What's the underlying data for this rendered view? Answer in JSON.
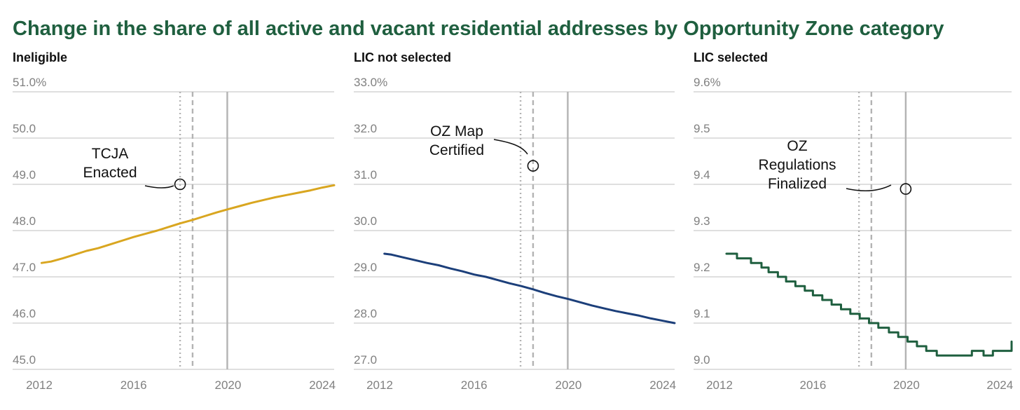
{
  "title": "Change in the share of all active and vacant residential addresses by Opportunity Zone category",
  "colors": {
    "title": "#1f5f3f",
    "grid": "#cccccc",
    "tick_text": "#808080",
    "event_line": "#b3b3b3",
    "ineligible": "#d9a620",
    "lic_not_selected": "#1c3f7a",
    "lic_selected": "#1f5f3f"
  },
  "events": [
    {
      "name": "TCJA Enacted",
      "x": 2017.97,
      "style": "dotted"
    },
    {
      "name": "OZ Map Certified",
      "x": 2018.5,
      "style": "dashed"
    },
    {
      "name": "OZ Regulations Finalized",
      "x": 2019.97,
      "style": "solid"
    }
  ],
  "chart_data": [
    {
      "type": "line",
      "title": "Ineligible",
      "xlim": [
        2012,
        2024.5
      ],
      "ylim": [
        45.0,
        51.0
      ],
      "x_ticks": [
        2012,
        2016,
        2020,
        2024
      ],
      "y_ticks": [
        45.0,
        46.0,
        47.0,
        48.0,
        49.0,
        50.0,
        51.0
      ],
      "x_tick_labels": [
        "2012",
        "2016",
        "2020",
        "2024"
      ],
      "y_tick_labels": [
        "45.0",
        "46.0",
        "47.0",
        "48.0",
        "49.0",
        "50.0",
        "51.0%"
      ],
      "series": [
        {
          "color": "#d9a620",
          "x": [
            2012.1,
            2012.5,
            2013.0,
            2013.5,
            2014.0,
            2014.5,
            2015.0,
            2015.5,
            2016.0,
            2016.5,
            2017.0,
            2017.5,
            2018.0,
            2018.5,
            2019.0,
            2019.5,
            2020.0,
            2020.5,
            2021.0,
            2021.5,
            2022.0,
            2022.5,
            2023.0,
            2023.5,
            2024.0,
            2024.5
          ],
          "y": [
            47.3,
            47.33,
            47.4,
            47.48,
            47.56,
            47.62,
            47.7,
            47.78,
            47.86,
            47.93,
            48.0,
            48.08,
            48.16,
            48.23,
            48.31,
            48.39,
            48.46,
            48.53,
            48.6,
            48.66,
            48.72,
            48.77,
            48.82,
            48.87,
            48.93,
            48.98
          ]
        }
      ],
      "annotation": {
        "text": [
          "TCJA",
          "Enacted"
        ],
        "x": 2017.97,
        "y": 49.0
      }
    },
    {
      "type": "line",
      "title": "LIC not selected",
      "xlim": [
        2012,
        2024.5
      ],
      "ylim": [
        27.0,
        33.0
      ],
      "x_ticks": [
        2012,
        2016,
        2020,
        2024
      ],
      "y_ticks": [
        27.0,
        28.0,
        29.0,
        30.0,
        31.0,
        32.0,
        33.0
      ],
      "x_tick_labels": [
        "2012",
        "2016",
        "2020",
        "2024"
      ],
      "y_tick_labels": [
        "27.0",
        "28.0",
        "29.0",
        "30.0",
        "31.0",
        "32.0",
        "33.0%"
      ],
      "series": [
        {
          "color": "#1c3f7a",
          "x": [
            2012.2,
            2012.5,
            2013.0,
            2013.5,
            2014.0,
            2014.5,
            2015.0,
            2015.5,
            2016.0,
            2016.5,
            2017.0,
            2017.5,
            2018.0,
            2018.5,
            2019.0,
            2019.5,
            2020.0,
            2020.5,
            2021.0,
            2021.5,
            2022.0,
            2022.5,
            2023.0,
            2023.5,
            2024.0,
            2024.5
          ],
          "y": [
            29.5,
            29.48,
            29.42,
            29.36,
            29.3,
            29.25,
            29.18,
            29.12,
            29.05,
            29.0,
            28.93,
            28.86,
            28.8,
            28.73,
            28.65,
            28.58,
            28.52,
            28.45,
            28.38,
            28.32,
            28.26,
            28.21,
            28.16,
            28.1,
            28.05,
            28.0
          ]
        }
      ],
      "annotation": {
        "text": [
          "OZ Map",
          "Certified"
        ],
        "x": 2018.5,
        "y": 31.4
      }
    },
    {
      "type": "line",
      "title": "LIC selected",
      "xlim": [
        2012,
        2024.5
      ],
      "ylim": [
        9.0,
        9.6
      ],
      "x_ticks": [
        2012,
        2016,
        2020,
        2024
      ],
      "y_ticks": [
        9.0,
        9.1,
        9.2,
        9.3,
        9.4,
        9.5,
        9.6
      ],
      "x_tick_labels": [
        "2012",
        "2016",
        "2020",
        "2024"
      ],
      "y_tick_labels": [
        "9.0",
        "9.1",
        "9.2",
        "9.3",
        "9.4",
        "9.5",
        "9.6%"
      ],
      "step": true,
      "series": [
        {
          "color": "#1f5f3f",
          "x": [
            2012.3,
            2012.75,
            2013.35,
            2013.8,
            2014.1,
            2014.5,
            2014.85,
            2015.25,
            2015.65,
            2016.0,
            2016.4,
            2016.8,
            2017.2,
            2017.6,
            2018.0,
            2018.4,
            2018.8,
            2019.25,
            2019.65,
            2020.05,
            2020.45,
            2020.85,
            2021.3,
            2022.0,
            2022.8,
            2023.3,
            2023.7,
            2024.0,
            2024.5
          ],
          "y": [
            9.25,
            9.24,
            9.23,
            9.22,
            9.21,
            9.2,
            9.19,
            9.18,
            9.17,
            9.16,
            9.15,
            9.14,
            9.13,
            9.12,
            9.11,
            9.1,
            9.09,
            9.08,
            9.07,
            9.06,
            9.05,
            9.04,
            9.03,
            9.03,
            9.04,
            9.03,
            9.04,
            9.04,
            9.06
          ]
        }
      ],
      "annotation": {
        "text": [
          "OZ",
          "Regulations",
          "Finalized"
        ],
        "x": 2019.97,
        "y": 9.39
      }
    }
  ]
}
